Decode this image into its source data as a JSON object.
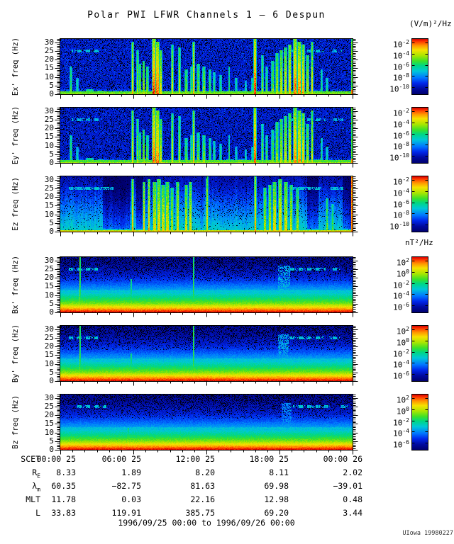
{
  "title": "Polar PWI LFWR Channels 1 — 6 Despun",
  "credit": "UIowa 19980227",
  "units": {
    "electric": "(V/m)²/Hz",
    "magnetic": "nT²/Hz"
  },
  "chart_data": {
    "type": "heatmap",
    "description": "Six stacked frequency-time spectrogram panels from Polar PWI LFWR channels 1-6 (despun): electric components Ex', Ey', Ez in (V/m)²/Hz and magnetic components Bx', By', Bz in nT²/Hz, 0-32 Hz versus time.",
    "time_range_label": "1996/09/25 00:00 to 1996/09/26 00:00",
    "freq_axis": {
      "min": 0,
      "max": 32,
      "major_ticks": [
        0,
        5,
        10,
        15,
        20,
        25,
        30
      ],
      "minor_tick_step": 1,
      "unit": "Hz"
    },
    "time_axis": {
      "start": "1996/09/25 00:00",
      "end": "1996/09/26 00:00",
      "major_tick_hours": 6,
      "minor_tick_hours": 1,
      "tick_labels": [
        "00:00 25",
        "06:00 25",
        "12:00 25",
        "18:00 25",
        "00:00 26"
      ]
    },
    "colorbars": {
      "electric": {
        "unit": "(V/m)²/Hz",
        "tick_exponents": [
          -2,
          -4,
          -6,
          -8,
          -10
        ]
      },
      "magnetic": {
        "unit": "nT²/Hz",
        "tick_exponents": [
          2,
          0,
          -2,
          -4,
          -6
        ]
      }
    },
    "panels": [
      {
        "id": "ex",
        "ylabel": "Ex' freq (Hz)",
        "field": "electric",
        "seed": 11,
        "render": {
          "base": "E",
          "streaks": "e_streaks",
          "edge_line": true,
          "gain": 1,
          "dash_segments": [
            [
              0.04,
              0.135,
              0.5
            ],
            [
              0.78,
              0.9,
              0.5
            ],
            [
              0.925,
              0.962,
              0.5
            ]
          ]
        }
      },
      {
        "id": "ey",
        "ylabel": "Ey' freq (Hz)",
        "field": "electric",
        "seed": 23,
        "render": {
          "base": "E",
          "streaks": "e_streaks",
          "edge_line": true,
          "gain": 0.97,
          "dash_segments": [
            [
              0.04,
              0.135,
              0.5
            ],
            [
              0.78,
              0.905,
              0.5
            ],
            [
              0.935,
              0.965,
              0.5
            ]
          ]
        }
      },
      {
        "id": "ez",
        "ylabel": "Ez freq (Hz)",
        "field": "electric",
        "seed": 37,
        "render": {
          "base": "EZ",
          "streaks": "ez_streaks",
          "edge_line": true,
          "gain": 1,
          "dark_regions": [
            [
              0.145,
              0.235
            ],
            [
              0.26,
              0.282
            ],
            [
              0.845,
              0.88
            ],
            [
              0.965,
              0.992
            ]
          ],
          "dash_segments": [
            [
              0.03,
              0.18,
              1.0
            ],
            [
              0.78,
              0.89,
              0.9
            ],
            [
              0.925,
              0.965,
              0.85
            ]
          ]
        }
      },
      {
        "id": "bx",
        "ylabel": "Bx' freq (Hz)",
        "field": "magnetic",
        "seed": 51,
        "render": {
          "base": "B",
          "gain": 1,
          "vlines": [
            [
              0.066,
              1.0,
              0.8
            ],
            [
              0.455,
              1.0,
              0.45
            ],
            [
              0.24,
              0.6,
              0.18
            ]
          ],
          "patch": [
            0.745,
            0.785,
            0.55
          ],
          "dash_segments": [
            [
              0.03,
              0.125,
              0.55
            ],
            [
              0.78,
              0.905,
              0.55
            ],
            [
              0.925,
              0.955,
              0.55
            ]
          ]
        }
      },
      {
        "id": "by",
        "ylabel": "By' freq (Hz)",
        "field": "magnetic",
        "seed": 67,
        "render": {
          "base": "B",
          "gain": 1,
          "vlines": [
            [
              0.066,
              1.0,
              0.72
            ],
            [
              0.455,
              1.0,
              0.5
            ],
            [
              0.24,
              0.5,
              0.15
            ]
          ],
          "patch": [
            0.745,
            0.78,
            0.5
          ],
          "dash_segments": [
            [
              0.03,
              0.125,
              0.55
            ],
            [
              0.78,
              0.9,
              0.55
            ],
            [
              0.92,
              0.955,
              0.55
            ]
          ]
        }
      },
      {
        "id": "bz",
        "ylabel": "Bz freq (Hz)",
        "field": "magnetic",
        "seed": 83,
        "render": {
          "base": "B",
          "gain": 1,
          "vlines": [
            [
              0.23,
              0.4,
              0.12
            ]
          ],
          "patch": [
            0.755,
            0.79,
            0.3
          ],
          "dash_segments": [
            [
              0.05,
              0.155,
              0.45
            ],
            [
              0.795,
              0.925,
              0.45
            ],
            [
              0.955,
              0.985,
              0.45
            ]
          ]
        }
      }
    ],
    "shared_features": {
      "e_streaks": [
        [
          0.035,
          0.5,
          1,
          0.45
        ],
        [
          0.055,
          0.3,
          1,
          0.3
        ],
        [
          0.09,
          0.35,
          1,
          0.35
        ],
        [
          0.1,
          0.09,
          8,
          0.45
        ],
        [
          0.135,
          0.07,
          6,
          0.4
        ],
        [
          0.19,
          0.05,
          5,
          0.3
        ],
        [
          0.285,
          0.08,
          10,
          0.45
        ],
        [
          0.245,
          0.95,
          1,
          0.75
        ],
        [
          0.262,
          0.8,
          1,
          0.6
        ],
        [
          0.272,
          0.55,
          2,
          0.5
        ],
        [
          0.283,
          0.6,
          2,
          0.55
        ],
        [
          0.295,
          0.5,
          2,
          0.5
        ],
        [
          0.318,
          1.0,
          3,
          0.95
        ],
        [
          0.33,
          0.95,
          3,
          0.9
        ],
        [
          0.342,
          0.8,
          2,
          0.7
        ],
        [
          0.38,
          0.9,
          1,
          0.7
        ],
        [
          0.405,
          0.85,
          1,
          0.65
        ],
        [
          0.43,
          0.45,
          2,
          0.5
        ],
        [
          0.447,
          0.5,
          1,
          0.5
        ],
        [
          0.455,
          0.95,
          1,
          0.8
        ],
        [
          0.47,
          0.55,
          2,
          0.5
        ],
        [
          0.49,
          0.5,
          2,
          0.55
        ],
        [
          0.51,
          0.45,
          1,
          0.45
        ],
        [
          0.525,
          0.4,
          1,
          0.4
        ],
        [
          0.545,
          0.35,
          1,
          0.4
        ],
        [
          0.575,
          0.5,
          1,
          0.4
        ],
        [
          0.58,
          0.07,
          8,
          0.35
        ],
        [
          0.6,
          0.3,
          1,
          0.3
        ],
        [
          0.62,
          0.06,
          6,
          0.3
        ],
        [
          0.63,
          0.25,
          1,
          0.3
        ],
        [
          0.655,
          0.3,
          1,
          0.35
        ],
        [
          0.665,
          1.0,
          2,
          1.0
        ],
        [
          0.69,
          0.7,
          1,
          0.55
        ],
        [
          0.705,
          0.5,
          1,
          0.45
        ],
        [
          0.725,
          0.6,
          2,
          0.5
        ],
        [
          0.74,
          0.75,
          2,
          0.6
        ],
        [
          0.755,
          0.8,
          2,
          0.65
        ],
        [
          0.77,
          0.85,
          2,
          0.7
        ],
        [
          0.785,
          0.9,
          2,
          0.75
        ],
        [
          0.8,
          1.0,
          3,
          0.9
        ],
        [
          0.815,
          0.95,
          3,
          0.85
        ],
        [
          0.83,
          0.9,
          2,
          0.8
        ],
        [
          0.845,
          0.7,
          2,
          0.6
        ],
        [
          0.86,
          0.95,
          1,
          0.7
        ],
        [
          0.88,
          0.06,
          8,
          0.3
        ],
        [
          0.89,
          0.45,
          1,
          0.4
        ],
        [
          0.91,
          0.3,
          1,
          0.35
        ],
        [
          0.94,
          0.05,
          6,
          0.3
        ],
        [
          0.945,
          0.25,
          1,
          0.3
        ]
      ],
      "ez_streaks": [
        [
          0.245,
          0.95,
          1,
          0.8
        ],
        [
          0.285,
          0.9,
          1,
          0.75
        ],
        [
          0.3,
          0.95,
          1,
          0.8
        ],
        [
          0.32,
          0.9,
          3,
          0.7
        ],
        [
          0.335,
          0.95,
          3,
          0.75
        ],
        [
          0.35,
          0.85,
          3,
          0.7
        ],
        [
          0.365,
          0.9,
          3,
          0.7
        ],
        [
          0.38,
          0.8,
          2,
          0.6
        ],
        [
          0.4,
          0.9,
          2,
          0.7
        ],
        [
          0.43,
          0.85,
          2,
          0.65
        ],
        [
          0.445,
          0.9,
          2,
          0.7
        ],
        [
          0.5,
          1.0,
          1,
          0.7
        ],
        [
          0.665,
          1.0,
          1,
          0.85
        ],
        [
          0.7,
          0.8,
          2,
          0.6
        ],
        [
          0.715,
          0.85,
          2,
          0.65
        ],
        [
          0.73,
          0.9,
          3,
          0.7
        ],
        [
          0.75,
          0.95,
          3,
          0.75
        ],
        [
          0.77,
          0.9,
          3,
          0.7
        ],
        [
          0.79,
          0.85,
          2,
          0.65
        ],
        [
          0.81,
          0.8,
          2,
          0.6
        ],
        [
          0.91,
          0.6,
          1,
          0.5
        ],
        [
          0.93,
          0.5,
          1,
          0.45
        ]
      ]
    },
    "ephemeris": {
      "rows": [
        {
          "label": "SCET",
          "sub": "",
          "values": [
            "00:00 25",
            "06:00 25",
            "12:00 25",
            "18:00 25",
            "00:00 26"
          ]
        },
        {
          "label": "R",
          "sub": "E",
          "values": [
            "8.33",
            "1.89",
            "8.20",
            "8.11",
            "2.02"
          ]
        },
        {
          "label": "λ",
          "sub": "m",
          "values": [
            "60.35",
            "−82.75",
            "81.63",
            "69.98",
            "−39.01"
          ]
        },
        {
          "label": "MLT",
          "sub": "",
          "values": [
            "11.78",
            "0.03",
            "22.16",
            "12.98",
            "0.48"
          ]
        },
        {
          "label": "L",
          "sub": "",
          "values": [
            "33.83",
            "119.91",
            "385.75",
            "69.20",
            "3.44"
          ]
        }
      ]
    }
  }
}
